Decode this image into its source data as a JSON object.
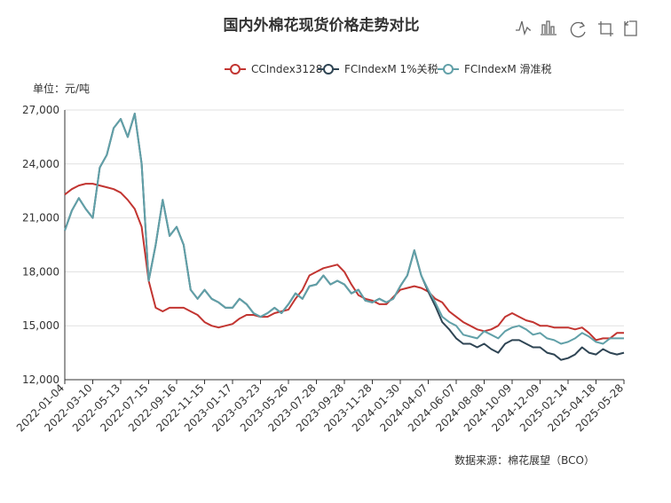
{
  "chart_data": {
    "type": "line",
    "title": "国内外棉花现货价格走势对比",
    "y_unit_label": "单位：元/吨",
    "source": "数据来源：棉花展望（BCO）",
    "categories": [
      "2022-01-04",
      null,
      null,
      null,
      "2022-03-10",
      null,
      null,
      null,
      "2022-05-13",
      null,
      null,
      null,
      "2022-07-15",
      null,
      null,
      null,
      "2022-09-16",
      null,
      null,
      null,
      "2022-11-15",
      null,
      null,
      null,
      "2023-01-17",
      null,
      null,
      null,
      "2023-03-23",
      null,
      null,
      null,
      "2023-05-26",
      null,
      null,
      null,
      "2023-07-28",
      null,
      null,
      null,
      "2023-09-28",
      null,
      null,
      null,
      "2023-11-28",
      null,
      null,
      null,
      "2024-01-30",
      null,
      null,
      null,
      "2024-04-07",
      null,
      null,
      null,
      "2024-06-07",
      null,
      null,
      null,
      "2024-08-08",
      null,
      null,
      null,
      "2024-10-09",
      null,
      null,
      null,
      "2024-12-09",
      null,
      null,
      null,
      "2025-02-14",
      null,
      null,
      null,
      "2025-04-18",
      null,
      null,
      null,
      "2025-05-28"
    ],
    "series": [
      {
        "name": "CCIndex3128",
        "color": "#c23531",
        "values": [
          22300,
          22600,
          22800,
          22900,
          22900,
          22800,
          22700,
          22600,
          22400,
          22000,
          21500,
          20500,
          17500,
          16000,
          15800,
          16000,
          16000,
          16000,
          15800,
          15600,
          15200,
          15000,
          14900,
          15000,
          15100,
          15400,
          15600,
          15600,
          15500,
          15500,
          15700,
          15800,
          15900,
          16500,
          17000,
          17800,
          18000,
          18200,
          18300,
          18400,
          18000,
          17300,
          16700,
          16500,
          16400,
          16200,
          16200,
          16600,
          17000,
          17100,
          17200,
          17100,
          16900,
          16500,
          16300,
          15800,
          15500,
          15200,
          15000,
          14800,
          14700,
          14800,
          15000,
          15500,
          15700,
          15500,
          15300,
          15200,
          15000,
          15000,
          14900,
          14900,
          14900,
          14800,
          14900,
          14600,
          14200,
          14300,
          14300,
          14600,
          14600
        ]
      },
      {
        "name": "FCIndexM 1%关税",
        "color": "#2f4554",
        "values": [
          20300,
          21400,
          22100,
          21500,
          21000,
          23800,
          24500,
          26000,
          26500,
          25500,
          26800,
          24000,
          17500,
          19500,
          22000,
          20000,
          20500,
          19500,
          17000,
          16500,
          17000,
          16500,
          16300,
          16000,
          16000,
          16500,
          16200,
          15700,
          15500,
          15700,
          16000,
          15700,
          16200,
          16800,
          16500,
          17200,
          17300,
          17800,
          17300,
          17500,
          17300,
          16800,
          17000,
          16400,
          16300,
          16500,
          16300,
          16500,
          17200,
          17800,
          19200,
          17800,
          16900,
          16100,
          15200,
          14800,
          14300,
          14000,
          14000,
          13800,
          14000,
          13700,
          13500,
          14000,
          14200,
          14200,
          14000,
          13800,
          13800,
          13500,
          13400,
          13100,
          13200,
          13400,
          13800,
          13500,
          13400,
          13700,
          13500,
          13400,
          13500
        ]
      },
      {
        "name": "FCIndexM 滑准税",
        "color": "#61a0a8",
        "values": [
          20300,
          21400,
          22100,
          21500,
          21000,
          23800,
          24500,
          26000,
          26500,
          25500,
          26800,
          24000,
          17500,
          19500,
          22000,
          20000,
          20500,
          19500,
          17000,
          16500,
          17000,
          16500,
          16300,
          16000,
          16000,
          16500,
          16200,
          15700,
          15500,
          15700,
          16000,
          15700,
          16200,
          16800,
          16500,
          17200,
          17300,
          17800,
          17300,
          17500,
          17300,
          16800,
          17000,
          16400,
          16300,
          16500,
          16300,
          16500,
          17200,
          17800,
          19200,
          17800,
          17000,
          16300,
          15500,
          15200,
          15000,
          14500,
          14400,
          14300,
          14700,
          14500,
          14300,
          14700,
          14900,
          15000,
          14800,
          14500,
          14600,
          14300,
          14200,
          14000,
          14100,
          14300,
          14600,
          14400,
          14100,
          14000,
          14300,
          14300,
          14300
        ]
      }
    ],
    "ylim": [
      12000,
      27000
    ],
    "yticks": [
      {
        "value": 12000,
        "label": "12,000"
      },
      {
        "value": 15000,
        "label": "15,000"
      },
      {
        "value": 18000,
        "label": "18,000"
      },
      {
        "value": 21000,
        "label": "21,000"
      },
      {
        "value": 24000,
        "label": "24,000"
      },
      {
        "value": 27000,
        "label": "27,000"
      }
    ],
    "grid": true
  }
}
